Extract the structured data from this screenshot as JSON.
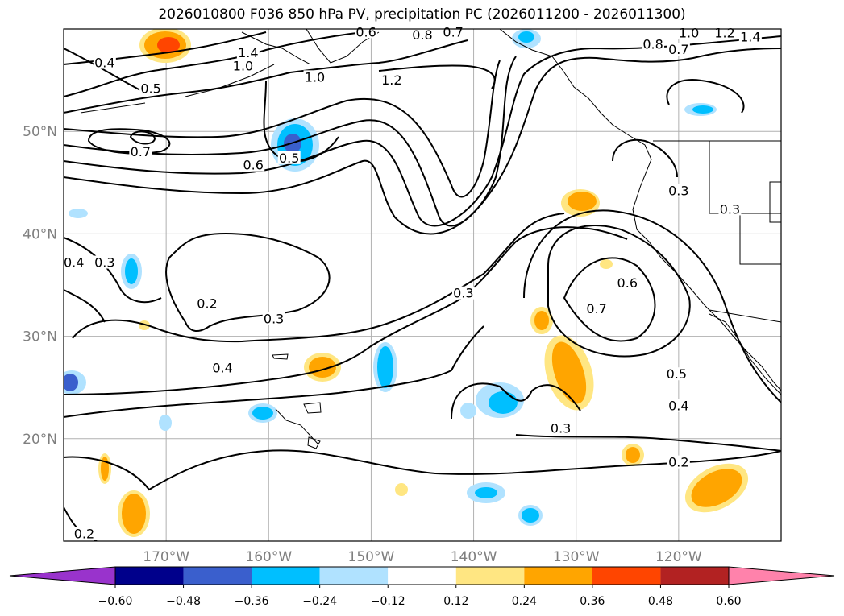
{
  "title": "2026010800 F036 850 hPa PV, precipitation PC (2026011200 - 2026011300)",
  "chart_data": {
    "type": "contour-map",
    "title": "2026010800 F036 850 hPa PV, precipitation PC (2026011200 - 2026011300)",
    "lon_range": [
      -180,
      -110
    ],
    "lat_range": [
      10,
      60
    ],
    "lat_ticks": [
      {
        "value": 20,
        "label": "20°N"
      },
      {
        "value": 30,
        "label": "30°N"
      },
      {
        "value": 40,
        "label": "40°N"
      },
      {
        "value": 50,
        "label": "50°N"
      }
    ],
    "lon_ticks": [
      {
        "value": -170,
        "label": "170°W"
      },
      {
        "value": -160,
        "label": "160°W"
      },
      {
        "value": -150,
        "label": "150°W"
      },
      {
        "value": -140,
        "label": "140°W"
      },
      {
        "value": -130,
        "label": "130°W"
      },
      {
        "value": -120,
        "label": "120°W"
      }
    ],
    "grid": true,
    "pv_contour_labels": [
      {
        "lon": -176,
        "lat": 56.5,
        "text": "0.4"
      },
      {
        "lon": -171.5,
        "lat": 54,
        "text": "0.5"
      },
      {
        "lon": -162,
        "lat": 57.5,
        "text": "1.4"
      },
      {
        "lon": -162.5,
        "lat": 56.2,
        "text": "1.0"
      },
      {
        "lon": -150.5,
        "lat": 59.5,
        "text": "0.6"
      },
      {
        "lon": -145,
        "lat": 59.2,
        "text": "0.8"
      },
      {
        "lon": -142,
        "lat": 59.5,
        "text": "0.7"
      },
      {
        "lon": -155.5,
        "lat": 55.1,
        "text": "1.0"
      },
      {
        "lon": -148,
        "lat": 54.8,
        "text": "1.2"
      },
      {
        "lon": -122.5,
        "lat": 58.3,
        "text": "0.8"
      },
      {
        "lon": -120,
        "lat": 57.8,
        "text": "0.7"
      },
      {
        "lon": -119,
        "lat": 59.4,
        "text": "1.0"
      },
      {
        "lon": -115.5,
        "lat": 59.4,
        "text": "1.2"
      },
      {
        "lon": -113,
        "lat": 59,
        "text": "1.4"
      },
      {
        "lon": -172.5,
        "lat": 47.8,
        "text": "0.7"
      },
      {
        "lon": -161.5,
        "lat": 46.5,
        "text": "0.6"
      },
      {
        "lon": -158,
        "lat": 47.2,
        "text": "0.5"
      },
      {
        "lon": -179,
        "lat": 37,
        "text": "0.4"
      },
      {
        "lon": -176,
        "lat": 37,
        "text": "0.3"
      },
      {
        "lon": -166,
        "lat": 33,
        "text": "0.2"
      },
      {
        "lon": -159.5,
        "lat": 31.5,
        "text": "0.3"
      },
      {
        "lon": -164.5,
        "lat": 26.7,
        "text": "0.4"
      },
      {
        "lon": -141,
        "lat": 34,
        "text": "0.3"
      },
      {
        "lon": -120,
        "lat": 44,
        "text": "0.3"
      },
      {
        "lon": -115,
        "lat": 42.2,
        "text": "0.3"
      },
      {
        "lon": -128,
        "lat": 32.5,
        "text": "0.7"
      },
      {
        "lon": -125,
        "lat": 35,
        "text": "0.6"
      },
      {
        "lon": -120.2,
        "lat": 26.1,
        "text": "0.5"
      },
      {
        "lon": -120,
        "lat": 23,
        "text": "0.4"
      },
      {
        "lon": -131.5,
        "lat": 20.8,
        "text": "0.3"
      },
      {
        "lon": -120,
        "lat": 17.5,
        "text": "0.2"
      },
      {
        "lon": -178,
        "lat": 10.5,
        "text": "0.2"
      }
    ],
    "precip_pc_colorbar": {
      "levels": [
        -0.6,
        -0.48,
        -0.36,
        -0.24,
        -0.12,
        0.12,
        0.24,
        0.36,
        0.48,
        0.6
      ],
      "tick_labels": [
        "−0.60",
        "−0.48",
        "−0.36",
        "−0.24",
        "−0.12",
        "0.12",
        "0.24",
        "0.36",
        "0.48",
        "0.60"
      ],
      "colors": [
        "#9933cc",
        "#00008b",
        "#3a5fcd",
        "#00bfff",
        "#b0e2ff",
        "#ffffff",
        "#ffe682",
        "#ffa500",
        "#ff4500",
        "#b22222",
        "#ff82ab"
      ],
      "extend": "both"
    }
  }
}
